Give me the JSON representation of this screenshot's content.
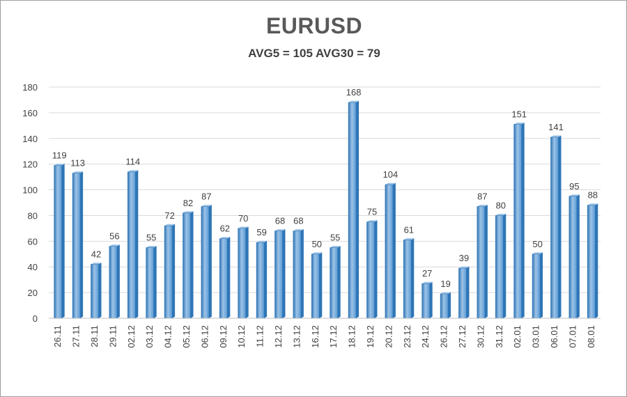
{
  "chart_data": {
    "type": "bar",
    "title": "EURUSD",
    "subtitle": "AVG5 = 105 AVG30 = 79",
    "categories": [
      "26.11",
      "27.11",
      "28.11",
      "29.11",
      "02.12",
      "03.12",
      "04.12",
      "05.12",
      "06.12",
      "09.12",
      "10.12",
      "11.12",
      "12.12",
      "13.12",
      "16.12",
      "17.12",
      "18.12",
      "19.12",
      "20.12",
      "23.12",
      "24.12",
      "26.12",
      "27.12",
      "30.12",
      "31.12",
      "02.01",
      "03.01",
      "06.01",
      "07.01",
      "08.01"
    ],
    "values": [
      119,
      113,
      42,
      56,
      114,
      55,
      72,
      82,
      87,
      62,
      70,
      59,
      68,
      68,
      50,
      55,
      168,
      75,
      104,
      61,
      27,
      19,
      39,
      87,
      80,
      151,
      50,
      141,
      95,
      88
    ],
    "ylim": [
      0,
      180
    ],
    "yticks": [
      0,
      20,
      40,
      60,
      80,
      100,
      120,
      140,
      160,
      180
    ],
    "grid": true,
    "legend": "none",
    "bar_color": "#5b9bd5",
    "bar_dark": "#2e75b6",
    "bar_light": "#9dc3e6"
  }
}
